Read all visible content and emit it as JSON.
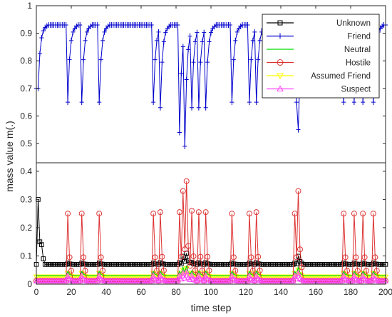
{
  "chart_data": {
    "type": "line",
    "title": "",
    "xlabel": "time step",
    "ylabel": "mass value m(.)",
    "xlim": [
      0,
      200
    ],
    "xticks": [
      "0",
      "20",
      "40",
      "60",
      "80",
      "100",
      "120",
      "140",
      "160",
      "180",
      "200"
    ],
    "upper_panel": {
      "ylim": [
        0.43,
        1.0
      ],
      "yticks": [
        "0.5",
        "0.6",
        "0.7",
        "0.8",
        "0.9",
        "1"
      ]
    },
    "lower_panel": {
      "ylim": [
        0,
        0.43
      ],
      "yticks": [
        "0",
        "0.1",
        "0.2",
        "0.3",
        "0.4"
      ]
    },
    "legend_position": "top-right",
    "series": [
      {
        "name": "Unknown",
        "color": "#000000",
        "marker": "square"
      },
      {
        "name": "Friend",
        "color": "#0000cc",
        "marker": "plus"
      },
      {
        "name": "Neutral",
        "color": "#00dd00",
        "marker": "none"
      },
      {
        "name": "Hostile",
        "color": "#dd3333",
        "marker": "circle"
      },
      {
        "name": "Assumed Friend",
        "color": "#ffff00",
        "marker": "triangle-down"
      },
      {
        "name": "Suspect",
        "color": "#ff44ff",
        "marker": "triangle-up"
      }
    ],
    "friend_dips": [
      {
        "t": 1,
        "v": 0.7
      },
      {
        "t": 18,
        "v": 0.65
      },
      {
        "t": 26,
        "v": 0.65
      },
      {
        "t": 36,
        "v": 0.65
      },
      {
        "t": 67,
        "v": 0.65
      },
      {
        "t": 71,
        "v": 0.63
      },
      {
        "t": 82,
        "v": 0.54
      },
      {
        "t": 85,
        "v": 0.49
      },
      {
        "t": 89,
        "v": 0.63
      },
      {
        "t": 93,
        "v": 0.63
      },
      {
        "t": 97,
        "v": 0.63
      },
      {
        "t": 112,
        "v": 0.65
      },
      {
        "t": 122,
        "v": 0.65
      },
      {
        "t": 126,
        "v": 0.65
      },
      {
        "t": 149,
        "v": 0.65
      },
      {
        "t": 150,
        "v": 0.55
      },
      {
        "t": 176,
        "v": 0.65
      },
      {
        "t": 182,
        "v": 0.65
      },
      {
        "t": 187,
        "v": 0.65
      },
      {
        "t": 193,
        "v": 0.65
      }
    ],
    "hostile_peaks": [
      {
        "t": 18,
        "v": 0.25
      },
      {
        "t": 26,
        "v": 0.25
      },
      {
        "t": 36,
        "v": 0.25
      },
      {
        "t": 67,
        "v": 0.25
      },
      {
        "t": 71,
        "v": 0.255
      },
      {
        "t": 82,
        "v": 0.255
      },
      {
        "t": 84,
        "v": 0.33
      },
      {
        "t": 86,
        "v": 0.365
      },
      {
        "t": 89,
        "v": 0.26
      },
      {
        "t": 93,
        "v": 0.255
      },
      {
        "t": 97,
        "v": 0.255
      },
      {
        "t": 112,
        "v": 0.25
      },
      {
        "t": 122,
        "v": 0.25
      },
      {
        "t": 126,
        "v": 0.255
      },
      {
        "t": 148,
        "v": 0.25
      },
      {
        "t": 150,
        "v": 0.33
      },
      {
        "t": 176,
        "v": 0.25
      },
      {
        "t": 182,
        "v": 0.25
      },
      {
        "t": 187,
        "v": 0.25
      },
      {
        "t": 193,
        "v": 0.25
      }
    ],
    "unknown_start": [
      {
        "t": 1,
        "v": 0.3
      },
      {
        "t": 2,
        "v": 0.15
      },
      {
        "t": 3,
        "v": 0.14
      },
      {
        "t": 4,
        "v": 0.09
      }
    ],
    "baselines": {
      "friend": 0.93,
      "unknown": 0.07,
      "neutral": 0.03,
      "assumed_friend": 0.025,
      "suspect": 0.012,
      "hostile": 0.012
    }
  }
}
